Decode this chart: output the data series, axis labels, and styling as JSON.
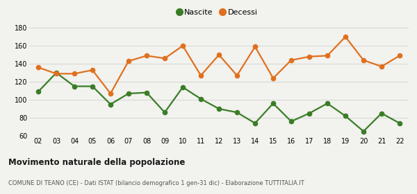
{
  "years": [
    "02",
    "03",
    "04",
    "05",
    "06",
    "07",
    "08",
    "09",
    "10",
    "11",
    "12",
    "13",
    "14",
    "15",
    "16",
    "17",
    "18",
    "19",
    "20",
    "21",
    "22"
  ],
  "nascite": [
    109,
    130,
    115,
    115,
    95,
    107,
    108,
    86,
    114,
    101,
    90,
    86,
    74,
    96,
    76,
    85,
    96,
    82,
    65,
    85,
    74
  ],
  "decessi": [
    136,
    129,
    129,
    133,
    107,
    143,
    149,
    146,
    160,
    127,
    150,
    127,
    159,
    124,
    144,
    148,
    149,
    170,
    144,
    137,
    149
  ],
  "nascite_color": "#3a7d27",
  "decessi_color": "#e07020",
  "bg_color": "#f2f2ee",
  "grid_color": "#d8d8d8",
  "ylim": [
    60,
    185
  ],
  "yticks": [
    60,
    80,
    100,
    120,
    140,
    160,
    180
  ],
  "title": "Movimento naturale della popolazione",
  "subtitle": "COMUNE DI TEANO (CE) - Dati ISTAT (bilancio demografico 1 gen-31 dic) - Elaborazione TUTTITALIA.IT",
  "legend_nascite": "Nascite",
  "legend_decessi": "Decessi",
  "marker_size": 4.5,
  "line_width": 1.6
}
